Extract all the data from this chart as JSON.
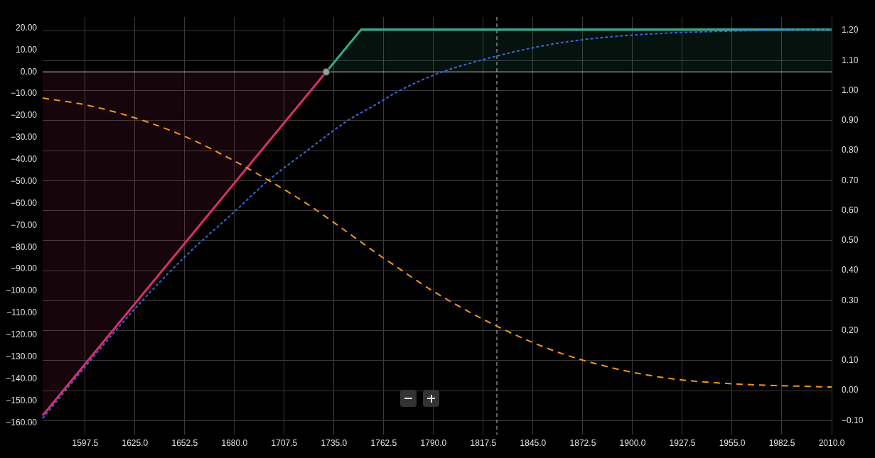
{
  "chart_data": {
    "type": "line",
    "xlim": [
      1574,
      2010
    ],
    "xticks": [
      1597.5,
      {
        "value": 1625,
        "label": "1625.0"
      },
      1652.5,
      {
        "value": 1680,
        "label": "1680.0"
      },
      1707.5,
      {
        "value": 1735,
        "label": "1735.0"
      },
      1762.5,
      {
        "value": 1790,
        "label": "1790.0"
      },
      1817.5,
      {
        "value": 1845,
        "label": "1845.0"
      },
      1872.5,
      {
        "value": 1900,
        "label": "1900.0"
      },
      1927.5,
      {
        "value": 1955,
        "label": "1955.0"
      },
      1982.5,
      {
        "value": 2010,
        "label": "2010.0"
      }
    ],
    "ylim": [
      -162.5,
      25
    ],
    "yticks": [
      {
        "value": 20,
        "label": "20.00"
      },
      {
        "value": 10,
        "label": "10.00"
      },
      {
        "value": 0,
        "label": "0.00"
      },
      {
        "value": -10,
        "label": "−10.00"
      },
      {
        "value": -20,
        "label": "−20.00"
      },
      {
        "value": -30,
        "label": "−30.00"
      },
      {
        "value": -40,
        "label": "−40.00"
      },
      {
        "value": -50,
        "label": "−50.00"
      },
      {
        "value": -60,
        "label": "−60.00"
      },
      {
        "value": -70,
        "label": "−70.00"
      },
      {
        "value": -80,
        "label": "−80.00"
      },
      {
        "value": -90,
        "label": "−90.00"
      },
      {
        "value": -100,
        "label": "−100.00"
      },
      {
        "value": -110,
        "label": "−110.00"
      },
      {
        "value": -120,
        "label": "−120.00"
      },
      {
        "value": -130,
        "label": "−130.00"
      },
      {
        "value": -140,
        "label": "−140.00"
      },
      {
        "value": -150,
        "label": "−150.00"
      },
      {
        "value": -160,
        "label": "−160.00"
      }
    ],
    "y2lim": [
      -0.125,
      1.245
    ],
    "y2ticks": [
      {
        "value": 1.2,
        "label": "1.20"
      },
      {
        "value": 1.1,
        "label": "1.10"
      },
      {
        "value": 1,
        "label": "1.00"
      },
      {
        "value": 0.9,
        "label": "0.90"
      },
      {
        "value": 0.8,
        "label": "0.80"
      },
      {
        "value": 0.7,
        "label": "0.70"
      },
      {
        "value": 0.6,
        "label": "0.60"
      },
      {
        "value": 0.5,
        "label": "0.50"
      },
      {
        "value": 0.4,
        "label": "0.40"
      },
      {
        "value": 0.3,
        "label": "0.30"
      },
      {
        "value": 0.2,
        "label": "0.20"
      },
      {
        "value": 0.1,
        "label": "0.10"
      },
      {
        "value": 0,
        "label": "0.00"
      },
      {
        "value": -0.1,
        "label": "−0.10"
      }
    ],
    "grid": true,
    "ref_lines": [
      {
        "axis": "y",
        "value": 0,
        "color": "#c8c8c8"
      },
      {
        "axis": "x",
        "value": 1825,
        "color": "#c8c8c8",
        "line_style": "dashed"
      }
    ],
    "series": [
      {
        "type": "area",
        "color": "#d8306a",
        "x": [
          1574,
          1730.7
        ],
        "values": [
          -156.7,
          0
        ]
      },
      {
        "type": "area",
        "color": "#2eae8e",
        "x": [
          1730.7,
          1750,
          2010
        ],
        "values": [
          0,
          19.3,
          19.3
        ]
      },
      {
        "type": "line",
        "color": "#3a66d8",
        "line_style": "dotted",
        "x": [
          1574,
          1598,
          1625,
          1653,
          1681,
          1698,
          1720,
          1743,
          1759,
          1768,
          1791,
          1825,
          1856,
          1888,
          1920,
          1955,
          1985,
          2010
        ],
        "values": [
          -158,
          -134,
          -108,
          -84,
          -63,
          -50,
          -36,
          -22,
          -14.5,
          -10,
          -1.2,
          7.2,
          12.7,
          16,
          17.7,
          18.6,
          19,
          19.3
        ]
      },
      {
        "type": "line",
        "color": "#f0961e",
        "line_style": "dashed",
        "axis": "y2",
        "x": [
          1574,
          1598,
          1625,
          1653,
          1681,
          1698,
          1720,
          1744,
          1759,
          1768,
          1791,
          1825,
          1856,
          1888,
          1920,
          1955,
          2010
        ],
        "values": [
          0.975,
          0.952,
          0.909,
          0.846,
          0.762,
          0.704,
          0.623,
          0.521,
          0.456,
          0.419,
          0.327,
          0.215,
          0.134,
          0.077,
          0.041,
          0.023,
          0.012
        ]
      },
      {
        "type": "scatter",
        "color": "#9e9e9e",
        "marker": "circle",
        "x": [
          1730.7
        ],
        "values": [
          0
        ]
      }
    ]
  }
}
